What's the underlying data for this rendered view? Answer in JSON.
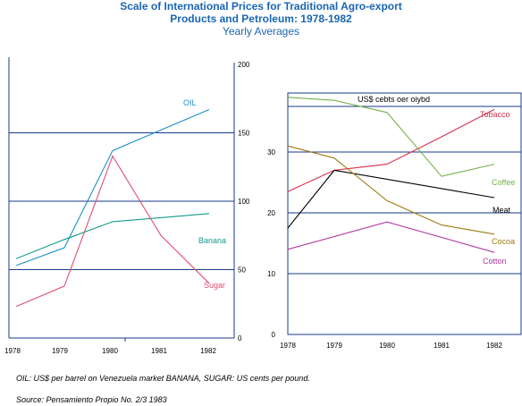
{
  "header": {
    "title_line1": "Scale of International Prices for Traditional Agro-export",
    "title_line2": "Products and Petroleum: 1978-1982",
    "subtitle": "Yearly Averages"
  },
  "notes": {
    "units": "OIL: US$ per barrel on Venezuela market BANANA, SUGAR: US cents per pound.",
    "source": "Source: Pensamiento Propio No. 2/3 1983"
  },
  "colors": {
    "oil": "#1a8fc8",
    "banana": "#159a8c",
    "sugar": "#e05070",
    "tobacco": "#d9304a",
    "coffee": "#74b04a",
    "meat": "#000000",
    "cocoa": "#a07a10",
    "cotton": "#b03aa0",
    "grid": "#1a3a8a"
  },
  "chart_data": [
    {
      "type": "line",
      "x": [
        "1978",
        "1979",
        "1980",
        "1981",
        "1982"
      ],
      "ylim": [
        0,
        200
      ],
      "yticks": [
        "0",
        "50",
        "100",
        "150",
        "200"
      ],
      "series": [
        {
          "name": "OIL",
          "values": [
            53,
            66,
            137,
            152,
            167
          ]
        },
        {
          "name": "Banana",
          "values": [
            58,
            72,
            85,
            88,
            91
          ]
        },
        {
          "name": "Sugar",
          "values": [
            23,
            38,
            133,
            75,
            40
          ]
        }
      ]
    },
    {
      "type": "line",
      "ylabel": "US$ cebts oer oiybd",
      "x": [
        "1978",
        "1979",
        "1980",
        "1981",
        "1982"
      ],
      "ylim": [
        0,
        40
      ],
      "yticks": [
        "0",
        "10",
        "20",
        "30"
      ],
      "series": [
        {
          "name": "Tobacco",
          "values": [
            23.5,
            27,
            28,
            32.5,
            37
          ]
        },
        {
          "name": "Coffee",
          "values": [
            39,
            38.5,
            36.5,
            26,
            28
          ]
        },
        {
          "name": "Meat",
          "values": [
            17.5,
            27,
            null,
            null,
            22.5
          ]
        },
        {
          "name": "Cocoa",
          "values": [
            31,
            29,
            22,
            18,
            16.5
          ]
        },
        {
          "name": "Cotton",
          "values": [
            14,
            null,
            18.5,
            null,
            13.5
          ]
        }
      ]
    }
  ]
}
